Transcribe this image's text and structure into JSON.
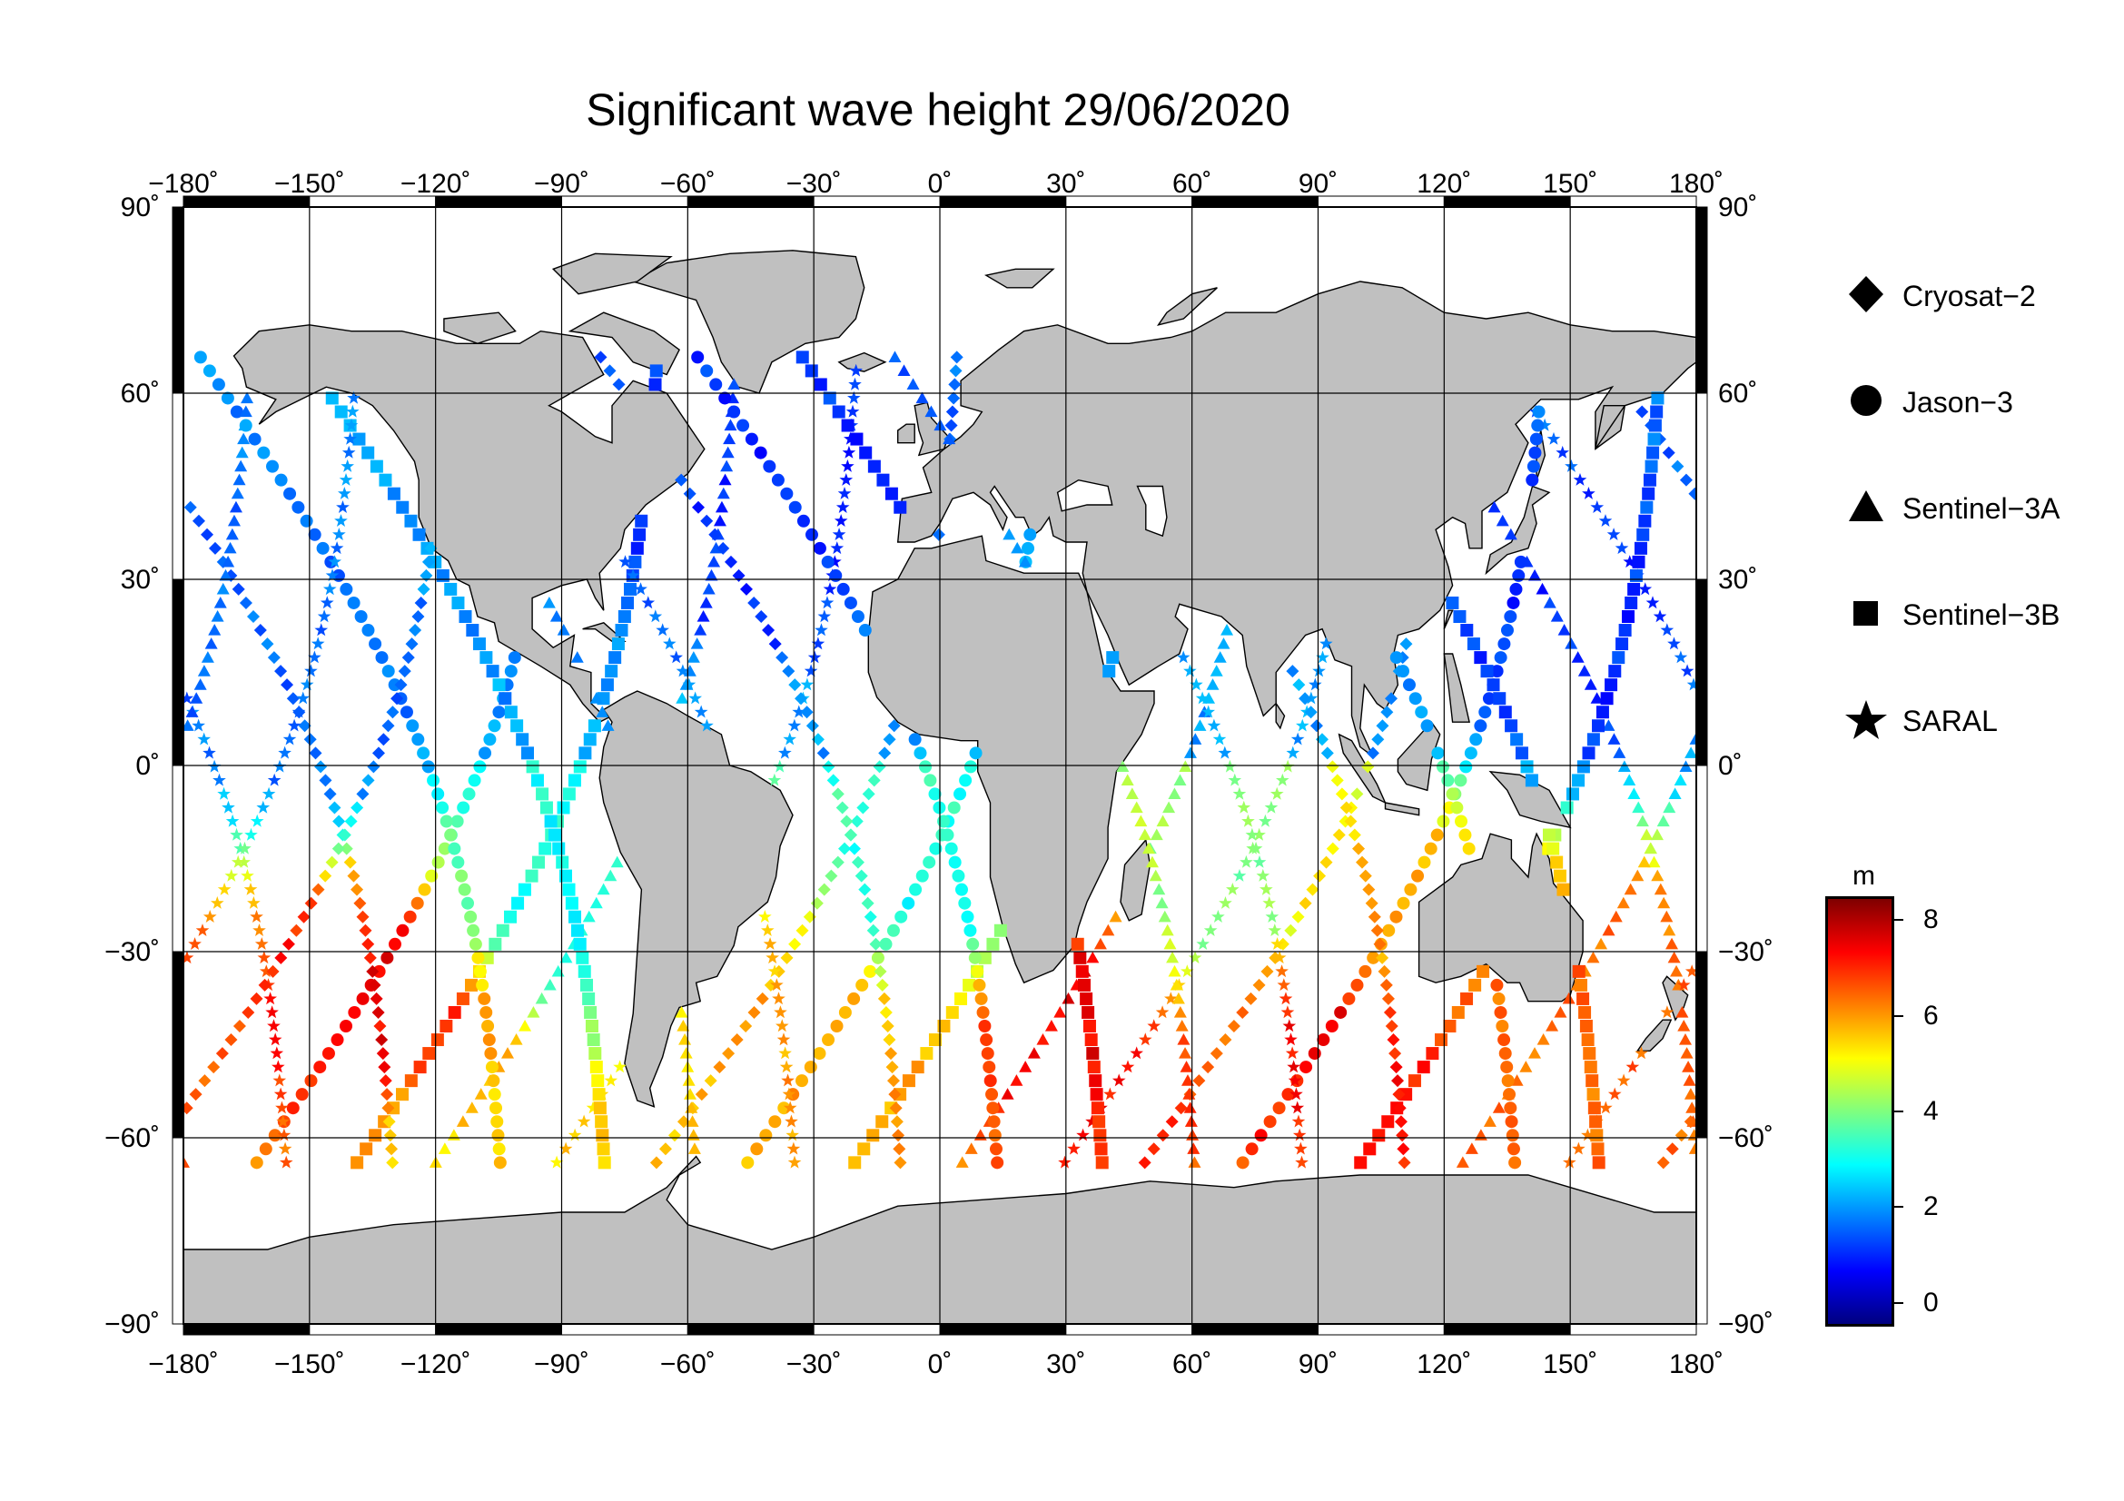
{
  "title": "Significant wave height 29/06/2020",
  "map": {
    "lon_ticks": [
      "−180˚",
      "−150˚",
      "−120˚",
      "−90˚",
      "−60˚",
      "−30˚",
      "0˚",
      "30˚",
      "60˚",
      "90˚",
      "120˚",
      "150˚",
      "180˚"
    ],
    "lat_ticks": [
      "90˚",
      "60˚",
      "30˚",
      "0˚",
      "−30˚",
      "−60˚",
      "−90˚"
    ],
    "land_color": "#c0c0c0",
    "ocean_color": "#ffffff"
  },
  "legend": {
    "items": [
      {
        "label": "Cryosat−2",
        "symbol": "diamond-icon"
      },
      {
        "label": "Jason−3",
        "symbol": "circle-icon"
      },
      {
        "label": "Sentinel−3A",
        "symbol": "triangle-icon"
      },
      {
        "label": "Sentinel−3B",
        "symbol": "square-icon"
      },
      {
        "label": "SARAL",
        "symbol": "star-icon"
      }
    ]
  },
  "colorbar": {
    "unit": "m",
    "ticks": [
      "8",
      "6",
      "4",
      "2",
      "0"
    ],
    "range": [
      -0.5,
      8.5
    ],
    "tick_values": [
      8,
      6,
      4,
      2,
      0
    ],
    "colors": [
      "#00007f",
      "#0000ff",
      "#007fff",
      "#00ffff",
      "#7fff7f",
      "#ffff00",
      "#ff7f00",
      "#ff0000",
      "#7f0000"
    ]
  },
  "chart_data": {
    "type": "scatter",
    "title": "Significant wave height 29/06/2020",
    "xlabel": "",
    "ylabel": "",
    "xlim": [
      -180,
      180
    ],
    "ylim": [
      -90,
      90
    ],
    "grid": true,
    "legend_position": "right",
    "color_variable": "significant wave height",
    "series": [
      {
        "name": "Cryosat−2",
        "marker": "diamond"
      },
      {
        "name": "Jason−3",
        "marker": "circle"
      },
      {
        "name": "Sentinel−3A",
        "marker": "triangle"
      },
      {
        "name": "Sentinel−3B",
        "marker": "square"
      },
      {
        "name": "SARAL",
        "marker": "star"
      }
    ],
    "wave_height_regions": [
      {
        "lon": -135,
        "lat": -38,
        "value": 7.5
      },
      {
        "lon": -115,
        "lat": -62,
        "value": 5.5
      },
      {
        "lon": 30,
        "lat": -40,
        "value": 7.5
      },
      {
        "lon": 95,
        "lat": -42,
        "value": 7.5
      },
      {
        "lon": 165,
        "lat": -40,
        "value": 6.5
      },
      {
        "lon": -30,
        "lat": -45,
        "value": 6
      },
      {
        "lon": 100,
        "lat": -30,
        "value": 6
      },
      {
        "lon": -150,
        "lat": 10,
        "value": 1.5
      },
      {
        "lon": 150,
        "lat": 20,
        "value": 1
      },
      {
        "lon": -40,
        "lat": 40,
        "value": 1
      },
      {
        "lon": 70,
        "lat": -20,
        "value": 4
      },
      {
        "lon": 0,
        "lat": -20,
        "value": 3
      },
      {
        "lon": -90,
        "lat": -20,
        "value": 3
      }
    ]
  }
}
